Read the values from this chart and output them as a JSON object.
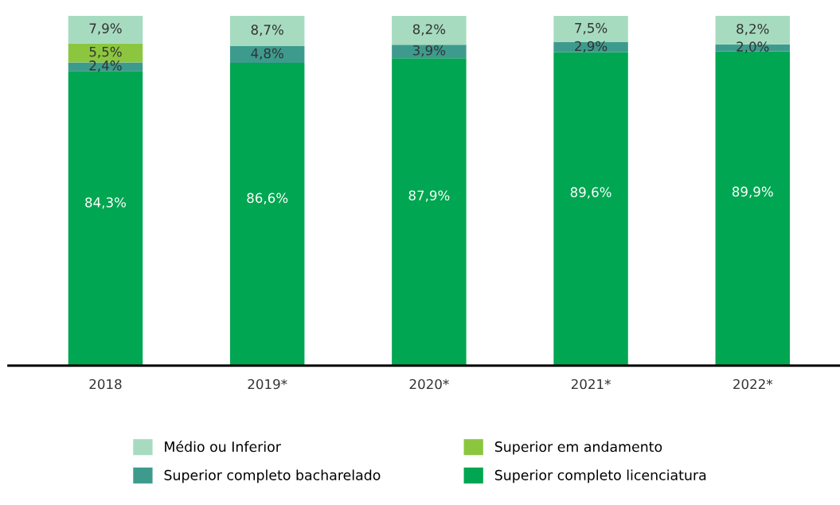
{
  "chart_data": {
    "type": "bar",
    "stacked": true,
    "categories": [
      "2018",
      "2019*",
      "2020*",
      "2021*",
      "2022*"
    ],
    "series": [
      {
        "name": "Superior completo licenciatura",
        "color": "#00a651",
        "values": [
          84.3,
          86.6,
          87.9,
          89.6,
          89.9
        ],
        "value_labels": [
          "84,3%",
          "86,6%",
          "87,9%",
          "89,6%",
          "89,9%"
        ]
      },
      {
        "name": "Superior completo bacharelado",
        "color": "#3d9b8e",
        "values": [
          2.4,
          4.8,
          3.9,
          2.9,
          2.0
        ],
        "value_labels": [
          "2,4%",
          "4,8%",
          "3,9%",
          "2,9%",
          "2,0%"
        ]
      },
      {
        "name": "Superior em andamento",
        "color": "#8cc63f",
        "values": [
          5.5,
          null,
          null,
          null,
          null
        ],
        "value_labels": [
          "5,5%",
          null,
          null,
          null,
          null
        ]
      },
      {
        "name": "Médio ou Inferior",
        "color": "#a6dbbf",
        "values": [
          7.9,
          8.7,
          8.2,
          7.5,
          8.2
        ],
        "value_labels": [
          "7,9%",
          "8,7%",
          "8,2%",
          "7,5%",
          "8,2%"
        ]
      }
    ],
    "legend": "bottom",
    "tick_labels": "x",
    "grid": false
  }
}
